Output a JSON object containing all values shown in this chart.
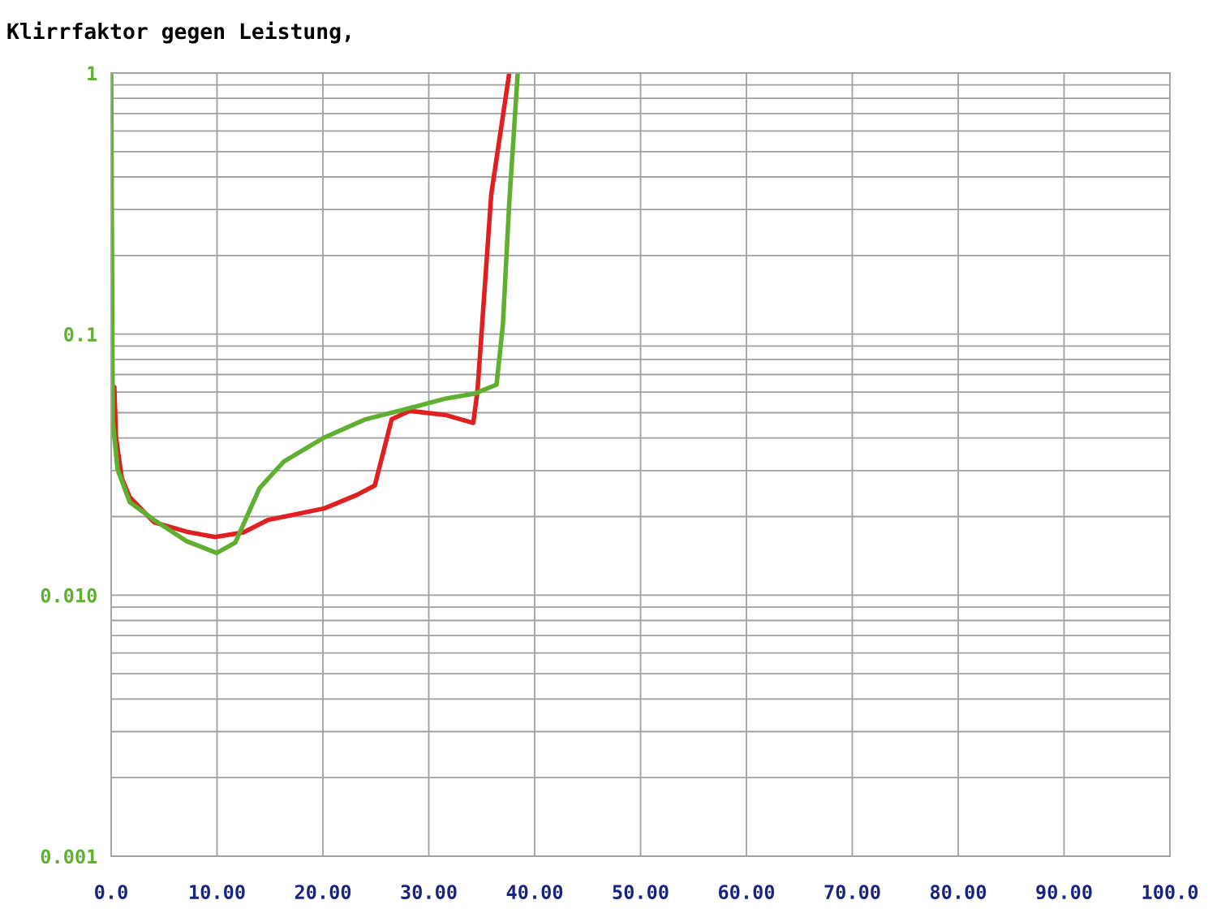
{
  "chart_data": {
    "type": "line",
    "title": "Klirrfaktor gegen Leistung,",
    "series": [
      {
        "color": "#e02020",
        "x": [
          0.3,
          0.46,
          1.0,
          1.76,
          4.06,
          7.13,
          9.8,
          12.5,
          14.8,
          20.15,
          23.2,
          24.9,
          26.5,
          28.2,
          31.65,
          34.2,
          34.6,
          35.9,
          37.6
        ],
        "values": [
          0.0626,
          0.0402,
          0.0281,
          0.0237,
          0.019,
          0.0175,
          0.0167,
          0.0174,
          0.0194,
          0.0215,
          0.0242,
          0.0263,
          0.0472,
          0.0508,
          0.0489,
          0.0457,
          0.0606,
          0.343,
          1
        ]
      },
      {
        "color": "#5fb030",
        "x": [
          0,
          0.15,
          0.61,
          1.76,
          4.06,
          7.13,
          9.96,
          11.72,
          14.02,
          16.32,
          20.15,
          23.98,
          27.82,
          31.65,
          34.33,
          36.4,
          37.0,
          37.6,
          38.4
        ],
        "values": [
          1,
          0.0464,
          0.0303,
          0.0227,
          0.0194,
          0.0161,
          0.0145,
          0.0159,
          0.0257,
          0.0325,
          0.0402,
          0.0471,
          0.0516,
          0.0567,
          0.0592,
          0.064,
          0.109,
          0.319,
          1
        ]
      }
    ],
    "log": "y",
    "xlim": [
      0,
      100
    ],
    "ylim": [
      0.001,
      1
    ],
    "xticks": [
      {
        "value": 0,
        "label": "0.0"
      },
      {
        "value": 10,
        "label": "10.00"
      },
      {
        "value": 20,
        "label": "20.00"
      },
      {
        "value": 30,
        "label": "30.00"
      },
      {
        "value": 40,
        "label": "40.00"
      },
      {
        "value": 50,
        "label": "50.00"
      },
      {
        "value": 60,
        "label": "60.00"
      },
      {
        "value": 70,
        "label": "70.00"
      },
      {
        "value": 80,
        "label": "80.00"
      },
      {
        "value": 90,
        "label": "90.00"
      },
      {
        "value": 100,
        "label": "100.0"
      }
    ],
    "yticks": [
      {
        "value": 0.001,
        "label": "0.001"
      },
      {
        "value": 0.01,
        "label": "0.010"
      },
      {
        "value": 0.1,
        "label": "0.1"
      },
      {
        "value": 1,
        "label": "1"
      }
    ],
    "grid": true,
    "line_style": "solid"
  }
}
